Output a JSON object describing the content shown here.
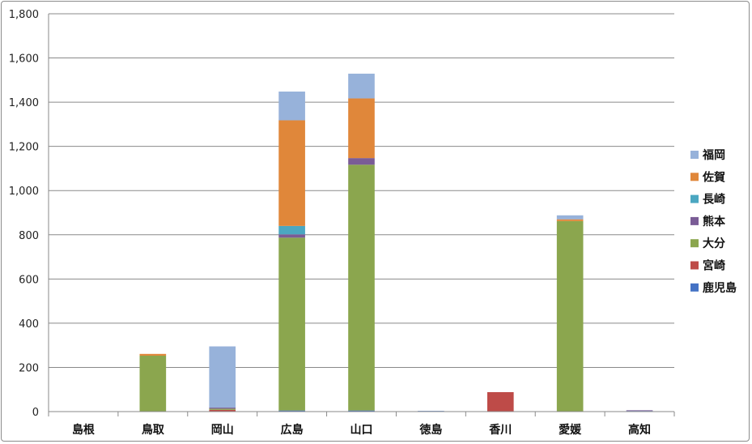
{
  "chart_data": {
    "type": "bar",
    "stacked": true,
    "categories": [
      "島根",
      "鳥取",
      "岡山",
      "広島",
      "山口",
      "徳島",
      "香川",
      "愛媛",
      "高知"
    ],
    "series": [
      {
        "name": "鹿児島",
        "color": "#4472C4",
        "values": [
          0,
          0,
          0,
          5,
          5,
          3,
          0,
          0,
          3
        ]
      },
      {
        "name": "宮崎",
        "color": "#BE4B48",
        "values": [
          0,
          0,
          8,
          0,
          0,
          0,
          88,
          0,
          0
        ]
      },
      {
        "name": "大分",
        "color": "#8BA64E",
        "values": [
          0,
          253,
          5,
          782,
          1112,
          0,
          0,
          862,
          0
        ]
      },
      {
        "name": "熊本",
        "color": "#7A5C96",
        "values": [
          0,
          0,
          5,
          15,
          30,
          0,
          0,
          0,
          3
        ]
      },
      {
        "name": "長崎",
        "color": "#4BA7C1",
        "values": [
          0,
          0,
          0,
          38,
          0,
          0,
          0,
          0,
          0
        ]
      },
      {
        "name": "佐賀",
        "color": "#E0873A",
        "values": [
          0,
          8,
          0,
          478,
          270,
          0,
          0,
          8,
          0
        ]
      },
      {
        "name": "福岡",
        "color": "#97B2DA",
        "values": [
          0,
          0,
          277,
          130,
          112,
          0,
          0,
          18,
          0
        ]
      }
    ],
    "legend_order": [
      "福岡",
      "佐賀",
      "長崎",
      "熊本",
      "大分",
      "宮崎",
      "鹿児島"
    ],
    "ylim": [
      0,
      1800
    ],
    "yticks": [
      "0",
      "200",
      "400",
      "600",
      "800",
      "1,000",
      "1,200",
      "1,400",
      "1,600",
      "1,800"
    ],
    "grid": true,
    "legend_position": "right"
  }
}
